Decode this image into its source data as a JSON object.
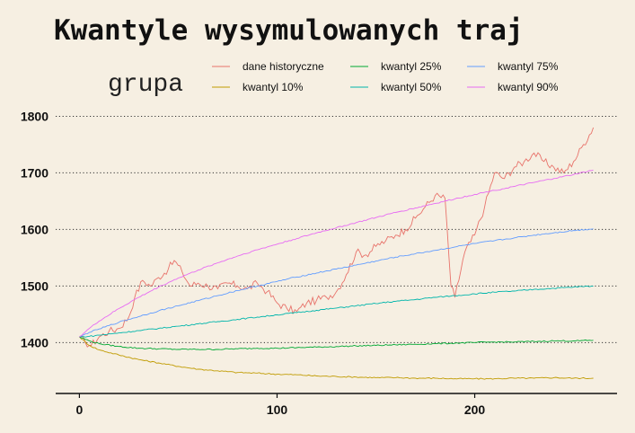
{
  "chart_data": {
    "type": "line",
    "title": "Kwantyle wysymulowanych traj",
    "xlabel": "",
    "ylabel": "",
    "xlim": [
      -12,
      272
    ],
    "ylim": [
      1310,
      1815
    ],
    "x_ticks": [
      0,
      100,
      200
    ],
    "y_ticks": [
      1400,
      1500,
      1600,
      1700,
      1800
    ],
    "grid": "horizontal dotted",
    "legend_title": "grupa",
    "legend_position": "top",
    "series": [
      {
        "name": "dane historyczne",
        "color": "#e8736b",
        "x": [
          0,
          3,
          6,
          10,
          15,
          20,
          25,
          28,
          32,
          36,
          40,
          45,
          48,
          52,
          56,
          60,
          65,
          70,
          75,
          80,
          85,
          90,
          95,
          100,
          105,
          110,
          115,
          120,
          125,
          130,
          135,
          140,
          145,
          150,
          155,
          160,
          165,
          170,
          175,
          180,
          185,
          188,
          190,
          195,
          200,
          205,
          210,
          215,
          220,
          225,
          230,
          235,
          240,
          245,
          250,
          255,
          260
        ],
        "values": [
          1410,
          1400,
          1395,
          1410,
          1420,
          1425,
          1445,
          1480,
          1510,
          1500,
          1515,
          1530,
          1545,
          1525,
          1500,
          1505,
          1500,
          1495,
          1505,
          1500,
          1495,
          1505,
          1490,
          1470,
          1460,
          1455,
          1470,
          1475,
          1480,
          1490,
          1520,
          1560,
          1555,
          1570,
          1580,
          1590,
          1600,
          1620,
          1640,
          1660,
          1655,
          1500,
          1480,
          1560,
          1590,
          1640,
          1700,
          1690,
          1710,
          1720,
          1735,
          1720,
          1710,
          1700,
          1720,
          1750,
          1780
        ]
      },
      {
        "name": "kwantyl 10%",
        "color": "#c09b00",
        "x": [
          0,
          5,
          10,
          20,
          30,
          40,
          50,
          60,
          70,
          80,
          90,
          100,
          110,
          120,
          130,
          140,
          150,
          160,
          170,
          180,
          190,
          200,
          210,
          220,
          230,
          240,
          250,
          260
        ],
        "values": [
          1410,
          1395,
          1387,
          1378,
          1370,
          1364,
          1358,
          1353,
          1350,
          1347,
          1346,
          1344,
          1343,
          1341,
          1340,
          1339,
          1338,
          1338,
          1337,
          1337,
          1336,
          1336,
          1336,
          1337,
          1337,
          1338,
          1337,
          1337
        ]
      },
      {
        "name": "kwantyl 25%",
        "color": "#00a833",
        "x": [
          0,
          5,
          10,
          20,
          30,
          40,
          50,
          60,
          70,
          80,
          90,
          100,
          110,
          120,
          130,
          140,
          150,
          160,
          170,
          180,
          190,
          200,
          210,
          220,
          230,
          240,
          250,
          260
        ],
        "values": [
          1410,
          1403,
          1398,
          1393,
          1390,
          1389,
          1388,
          1388,
          1388,
          1389,
          1390,
          1390,
          1391,
          1392,
          1393,
          1394,
          1395,
          1396,
          1397,
          1398,
          1399,
          1400,
          1401,
          1401,
          1402,
          1403,
          1403,
          1404
        ]
      },
      {
        "name": "kwantyl 50%",
        "color": "#00b5ab",
        "x": [
          0,
          5,
          10,
          20,
          30,
          40,
          50,
          60,
          70,
          80,
          90,
          100,
          110,
          120,
          130,
          140,
          150,
          160,
          170,
          180,
          190,
          200,
          210,
          220,
          230,
          240,
          250,
          260
        ],
        "values": [
          1410,
          1411,
          1413,
          1417,
          1421,
          1425,
          1429,
          1433,
          1437,
          1441,
          1445,
          1449,
          1453,
          1457,
          1461,
          1465,
          1469,
          1473,
          1476,
          1480,
          1483,
          1486,
          1489,
          1491,
          1494,
          1496,
          1498,
          1500
        ]
      },
      {
        "name": "kwantyl 75%",
        "color": "#619cff",
        "x": [
          0,
          5,
          10,
          20,
          30,
          40,
          50,
          60,
          70,
          80,
          90,
          100,
          110,
          120,
          130,
          140,
          150,
          160,
          170,
          180,
          190,
          200,
          210,
          220,
          230,
          240,
          250,
          260
        ],
        "values": [
          1410,
          1418,
          1424,
          1436,
          1446,
          1456,
          1465,
          1474,
          1483,
          1492,
          1500,
          1508,
          1516,
          1523,
          1530,
          1537,
          1544,
          1551,
          1557,
          1563,
          1569,
          1575,
          1580,
          1585,
          1590,
          1594,
          1598,
          1601
        ]
      },
      {
        "name": "kwantyl 90%",
        "color": "#e76bf3",
        "x": [
          0,
          5,
          10,
          20,
          30,
          40,
          50,
          60,
          70,
          80,
          90,
          100,
          110,
          120,
          130,
          140,
          150,
          160,
          170,
          180,
          190,
          200,
          210,
          220,
          230,
          240,
          250,
          260
        ],
        "values": [
          1410,
          1425,
          1438,
          1460,
          1480,
          1498,
          1514,
          1528,
          1541,
          1553,
          1564,
          1574,
          1584,
          1594,
          1603,
          1612,
          1621,
          1630,
          1638,
          1646,
          1654,
          1662,
          1669,
          1676,
          1683,
          1690,
          1697,
          1705
        ]
      }
    ]
  }
}
